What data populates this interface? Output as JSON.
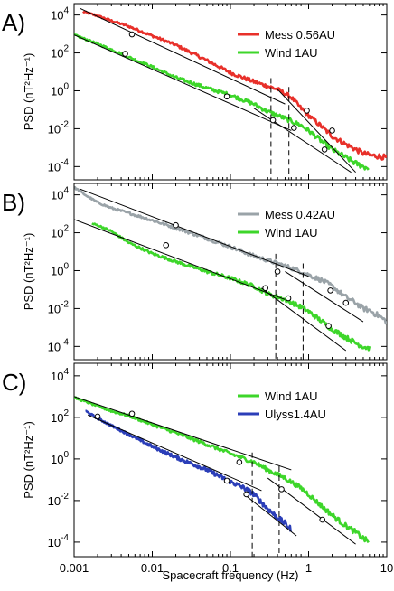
{
  "figure": {
    "xlabel": "Spacecraft frequency (Hz)",
    "x_ticks": [
      "0.001",
      "0.01",
      "0.1",
      "1",
      "10"
    ],
    "y_ticks": [
      "10^4",
      "10^2",
      "10^0",
      "10^-2",
      "10^-4"
    ]
  },
  "chart_data": [
    {
      "type": "line",
      "panel_label": "A)",
      "ylabel": "PSD (nT²Hz⁻¹)",
      "x_scale": "log",
      "y_scale": "log",
      "xlim": [
        0.001,
        10
      ],
      "ylim": [
        2e-05,
        40000
      ],
      "legend_placement": "top-right",
      "series": [
        {
          "name": "Mess 0.56AU",
          "color": "#e8302a",
          "x": [
            0.0013,
            0.002,
            0.003,
            0.005,
            0.01,
            0.02,
            0.05,
            0.1,
            0.2,
            0.4,
            0.6,
            0.8,
            1,
            1.5,
            2,
            3,
            4,
            5,
            6,
            8,
            10
          ],
          "y": [
            15000,
            9000,
            5000,
            2500,
            800,
            260,
            40,
            9,
            3,
            1.2,
            0.45,
            0.12,
            0.05,
            0.012,
            0.004,
            0.0015,
            0.0008,
            0.0005,
            0.0004,
            0.00035,
            0.0003
          ]
        },
        {
          "name": "Wind  1AU",
          "color": "#3dd62a",
          "x": [
            0.001,
            0.002,
            0.003,
            0.005,
            0.01,
            0.02,
            0.05,
            0.1,
            0.2,
            0.3,
            0.5,
            0.8,
            1,
            1.5,
            2,
            3,
            4,
            5,
            6
          ],
          "y": [
            900,
            300,
            150,
            60,
            18,
            5,
            1.4,
            0.6,
            0.2,
            0.08,
            0.035,
            0.015,
            0.008,
            0.002,
            0.0008,
            0.0003,
            0.00015,
            0.0001,
            8e-05
          ]
        }
      ],
      "fit_lines": [
        {
          "x": [
            0.0012,
            0.5
          ],
          "y": [
            22000,
            0.2
          ]
        },
        {
          "x": [
            0.4,
            4
          ],
          "y": [
            1.2,
            5e-05
          ]
        },
        {
          "x": [
            0.001,
            0.6
          ],
          "y": [
            900,
            0.008
          ]
        },
        {
          "x": [
            0.2,
            3.5
          ],
          "y": [
            0.12,
            5e-05
          ]
        }
      ],
      "markers": [
        {
          "x": 0.0055,
          "y": 950
        },
        {
          "x": 0.95,
          "y": 0.09
        },
        {
          "x": 0.0045,
          "y": 90
        },
        {
          "x": 0.09,
          "y": 0.5
        },
        {
          "x": 0.35,
          "y": 0.028
        },
        {
          "x": 0.65,
          "y": 0.011
        },
        {
          "x": 2.0,
          "y": 0.008
        },
        {
          "x": 1.6,
          "y": 0.0008
        }
      ],
      "vlines": [
        0.33,
        0.56
      ]
    },
    {
      "type": "line",
      "panel_label": "B)",
      "ylabel": "PSD (nT²Hz⁻¹)",
      "x_scale": "log",
      "y_scale": "log",
      "xlim": [
        0.001,
        10
      ],
      "ylim": [
        2e-05,
        40000
      ],
      "legend_placement": "top-right",
      "series": [
        {
          "name": "Mess  0.42AU",
          "color": "#9aa3a8",
          "x": [
            0.001,
            0.0015,
            0.002,
            0.003,
            0.005,
            0.01,
            0.02,
            0.05,
            0.1,
            0.2,
            0.5,
            0.8,
            1,
            1.5,
            2,
            3,
            4,
            5,
            6,
            8,
            10
          ],
          "y": [
            25000,
            8000,
            4000,
            2000,
            1100,
            450,
            180,
            50,
            18,
            6,
            1.8,
            0.9,
            0.6,
            0.3,
            0.15,
            0.04,
            0.02,
            0.01,
            0.008,
            0.004,
            0.002
          ]
        },
        {
          "name": "Wind  1AU",
          "color": "#3dd62a",
          "x": [
            0.0017,
            0.002,
            0.003,
            0.005,
            0.01,
            0.02,
            0.05,
            0.1,
            0.2,
            0.3,
            0.5,
            0.8,
            1,
            1.5,
            2,
            3,
            4,
            5,
            6
          ],
          "y": [
            300,
            250,
            120,
            30,
            8,
            3,
            0.9,
            0.4,
            0.15,
            0.06,
            0.03,
            0.012,
            0.007,
            0.002,
            0.0008,
            0.0003,
            0.00015,
            0.0001,
            8e-05
          ]
        }
      ],
      "fit_lines": [
        {
          "x": [
            0.0012,
            1.0
          ],
          "y": [
            20000,
            0.5
          ]
        },
        {
          "x": [
            0.5,
            5
          ],
          "y": [
            0.9,
            0.002
          ]
        },
        {
          "x": [
            0.001,
            0.5
          ],
          "y": [
            500,
            0.03
          ]
        },
        {
          "x": [
            0.25,
            3
          ],
          "y": [
            0.12,
            6e-05
          ]
        }
      ],
      "markers": [
        {
          "x": 0.02,
          "y": 250
        },
        {
          "x": 0.4,
          "y": 0.9
        },
        {
          "x": 1.9,
          "y": 0.09
        },
        {
          "x": 3.0,
          "y": 0.02
        },
        {
          "x": 0.015,
          "y": 22
        },
        {
          "x": 0.28,
          "y": 0.12
        },
        {
          "x": 0.55,
          "y": 0.035
        },
        {
          "x": 1.8,
          "y": 0.0012
        }
      ],
      "vlines": [
        0.38,
        0.85
      ]
    },
    {
      "type": "line",
      "panel_label": "C)",
      "ylabel": "PSD (nT²Hz⁻¹)",
      "x_scale": "log",
      "y_scale": "log",
      "xlim": [
        0.001,
        10
      ],
      "ylim": [
        2e-05,
        40000
      ],
      "legend_placement": "top-right",
      "series": [
        {
          "name": "Wind 1AU",
          "color": "#3dd62a",
          "x": [
            0.001,
            0.002,
            0.003,
            0.005,
            0.01,
            0.02,
            0.05,
            0.1,
            0.2,
            0.3,
            0.5,
            0.8,
            1,
            1.5,
            2,
            3,
            4,
            5,
            6
          ],
          "y": [
            900,
            350,
            200,
            120,
            45,
            18,
            5,
            1.8,
            0.7,
            0.3,
            0.12,
            0.04,
            0.02,
            0.005,
            0.002,
            0.0006,
            0.0003,
            0.00015,
            0.0001
          ]
        },
        {
          "name": "Ulyss1.4AU",
          "color": "#2b3eb8",
          "x": [
            0.0014,
            0.002,
            0.003,
            0.005,
            0.01,
            0.02,
            0.05,
            0.1,
            0.15,
            0.2,
            0.25,
            0.3,
            0.4,
            0.5,
            0.6
          ],
          "y": [
            200,
            90,
            40,
            15,
            4,
            1.2,
            0.3,
            0.08,
            0.04,
            0.02,
            0.008,
            0.004,
            0.0015,
            0.0008,
            0.0004
          ]
        }
      ],
      "fit_lines": [
        {
          "x": [
            0.001,
            0.6
          ],
          "y": [
            1000,
            0.3
          ]
        },
        {
          "x": [
            0.3,
            4
          ],
          "y": [
            0.12,
            8e-05
          ]
        },
        {
          "x": [
            0.0015,
            0.25
          ],
          "y": [
            130,
            0.03
          ]
        },
        {
          "x": [
            0.15,
            0.7
          ],
          "y": [
            0.02,
            0.0002
          ]
        }
      ],
      "markers": [
        {
          "x": 0.0055,
          "y": 150
        },
        {
          "x": 0.13,
          "y": 0.7
        },
        {
          "x": 0.45,
          "y": 0.035
        },
        {
          "x": 1.5,
          "y": 0.0012
        },
        {
          "x": 0.002,
          "y": 110
        },
        {
          "x": 0.09,
          "y": 0.09
        },
        {
          "x": 0.16,
          "y": 0.02
        }
      ],
      "vlines": [
        0.19,
        0.42
      ]
    }
  ]
}
